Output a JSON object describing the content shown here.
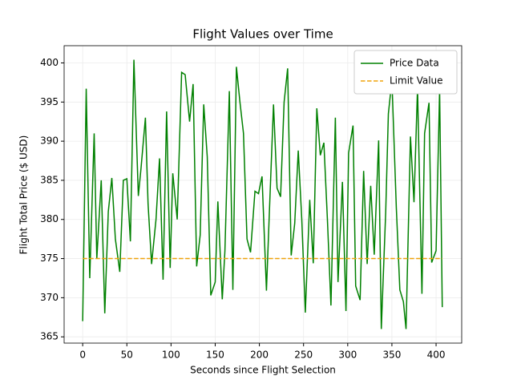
{
  "chart_data": {
    "type": "line",
    "title": "Flight Values over Time",
    "x_label": "Seconds since Flight Selection",
    "y_label": "Flight Total Price ($ USD)",
    "xlim": [
      -21,
      429
    ],
    "ylim": [
      364.2,
      402.2
    ],
    "xticks": [
      0,
      50,
      100,
      150,
      200,
      250,
      300,
      350,
      400
    ],
    "yticks": [
      365,
      370,
      375,
      380,
      385,
      390,
      395,
      400
    ],
    "grid": true,
    "legend": "upper right",
    "series": [
      {
        "name": "Price Data",
        "color": "#008000",
        "dash": false,
        "x": [
          0,
          4,
          8,
          13,
          16,
          21,
          25,
          29,
          33,
          37,
          42,
          46,
          50,
          54,
          58,
          63,
          66,
          71,
          74,
          78,
          83,
          87,
          91,
          95,
          99,
          102,
          107,
          112,
          116,
          121,
          125,
          129,
          133,
          137,
          141,
          145,
          150,
          153,
          158,
          161,
          166,
          170,
          174,
          178,
          182,
          186,
          190,
          195,
          199,
          203,
          208,
          211,
          216,
          220,
          224,
          228,
          232,
          236,
          240,
          244,
          248,
          252,
          257,
          261,
          265,
          269,
          273,
          277,
          281,
          286,
          289,
          294,
          298,
          301,
          306,
          309,
          314,
          318,
          322,
          326,
          330,
          335,
          338,
          343,
          346,
          350,
          355,
          359,
          363,
          366,
          371,
          375,
          379,
          384,
          387,
          392,
          395,
          400,
          404,
          407
        ],
        "values": [
          367,
          396.7,
          372.5,
          391,
          375,
          385,
          368,
          381,
          385.3,
          377.5,
          373.3,
          385,
          385.2,
          377.2,
          400.4,
          383,
          386.5,
          393,
          382,
          374.3,
          380,
          387.8,
          372.3,
          393.8,
          373.8,
          385.9,
          380,
          398.8,
          398.5,
          392.5,
          397.3,
          374,
          378,
          394.7,
          388,
          370.3,
          372,
          382.3,
          369.8,
          376,
          396.4,
          371,
          399.5,
          395,
          391,
          377.5,
          375.8,
          383.6,
          383.3,
          385.5,
          370.9,
          380,
          394.7,
          384,
          382.9,
          395,
          399.3,
          375.4,
          379.5,
          388.8,
          380,
          368.1,
          382.5,
          374.4,
          394.2,
          388.2,
          389.8,
          380,
          369,
          393,
          372,
          384.8,
          368.3,
          388.5,
          392,
          371.5,
          369.7,
          386.2,
          374.3,
          384.3,
          375.5,
          390.1,
          366,
          381,
          393.5,
          397.8,
          381.5,
          371,
          369.5,
          366,
          390.6,
          382.2,
          396.8,
          370.5,
          391,
          394.9,
          374.5,
          376,
          396.6,
          368.8
        ]
      },
      {
        "name": "Limit Value",
        "color": "#f0a30a",
        "dash": true,
        "x": [
          0,
          407
        ],
        "values": [
          375,
          375
        ]
      }
    ]
  }
}
